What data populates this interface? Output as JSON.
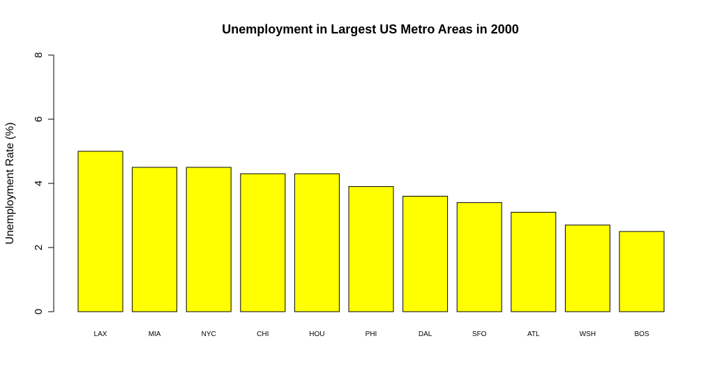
{
  "chart_data": {
    "type": "bar",
    "title": "Unemployment in Largest US Metro Areas in 2000",
    "xlabel": "",
    "ylabel": "Unemployment Rate (%)",
    "categories": [
      "LAX",
      "MIA",
      "NYC",
      "CHI",
      "HOU",
      "PHI",
      "DAL",
      "SFO",
      "ATL",
      "WSH",
      "BOS"
    ],
    "values": [
      5.0,
      4.5,
      4.5,
      4.3,
      4.3,
      3.9,
      3.6,
      3.4,
      3.1,
      2.7,
      2.5
    ],
    "ylim": [
      0,
      8
    ],
    "yticks": [
      0,
      2,
      4,
      6,
      8
    ],
    "bar_color": "#ffff00",
    "border_color": "#000000",
    "grid": false,
    "legend": "none"
  }
}
